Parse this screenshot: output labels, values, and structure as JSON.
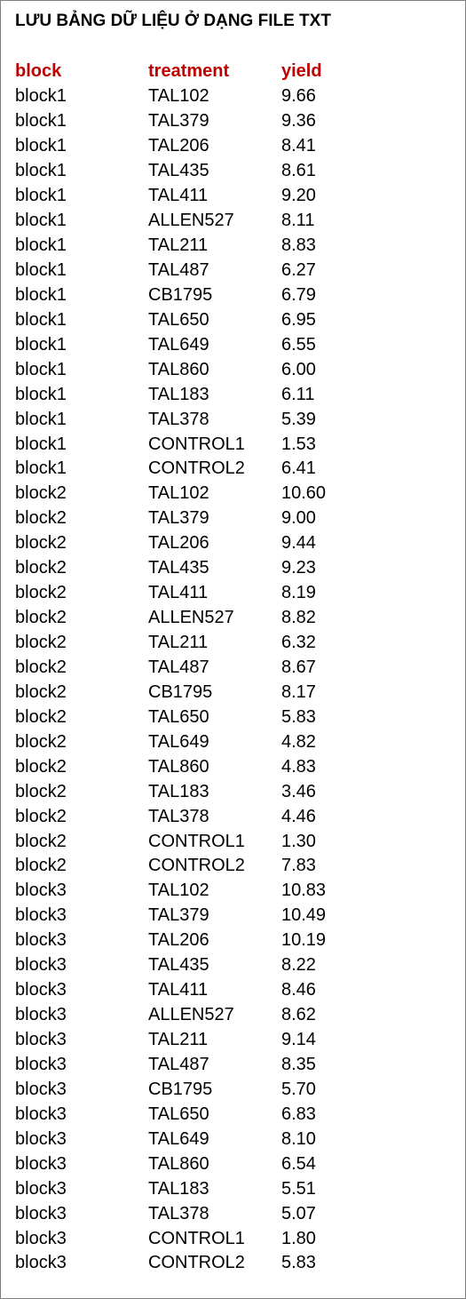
{
  "title": "LƯU BẢNG DỮ LIỆU Ở DẠNG FILE TXT",
  "accent_color": "#c00000",
  "table": {
    "headers": [
      "block",
      "treatment",
      "yield"
    ],
    "rows": [
      [
        "block1",
        "TAL102",
        "9.66"
      ],
      [
        "block1",
        "TAL379",
        "9.36"
      ],
      [
        "block1",
        "TAL206",
        "8.41"
      ],
      [
        "block1",
        "TAL435",
        "8.61"
      ],
      [
        "block1",
        "TAL411",
        "9.20"
      ],
      [
        "block1",
        "ALLEN527",
        "8.11"
      ],
      [
        "block1",
        "TAL211",
        "8.83"
      ],
      [
        "block1",
        "TAL487",
        "6.27"
      ],
      [
        "block1",
        "CB1795",
        "6.79"
      ],
      [
        "block1",
        "TAL650",
        "6.95"
      ],
      [
        "block1",
        "TAL649",
        "6.55"
      ],
      [
        "block1",
        "TAL860",
        "6.00"
      ],
      [
        "block1",
        "TAL183",
        "6.11"
      ],
      [
        "block1",
        "TAL378",
        "5.39"
      ],
      [
        "block1",
        "CONTROL1",
        "1.53"
      ],
      [
        "block1",
        "CONTROL2",
        "6.41"
      ],
      [
        "block2",
        "TAL102",
        "10.60"
      ],
      [
        "block2",
        "TAL379",
        "9.00"
      ],
      [
        "block2",
        "TAL206",
        "9.44"
      ],
      [
        "block2",
        "TAL435",
        "9.23"
      ],
      [
        "block2",
        "TAL411",
        "8.19"
      ],
      [
        "block2",
        "ALLEN527",
        "8.82"
      ],
      [
        "block2",
        "TAL211",
        "6.32"
      ],
      [
        "block2",
        "TAL487",
        "8.67"
      ],
      [
        "block2",
        "CB1795",
        "8.17"
      ],
      [
        "block2",
        "TAL650",
        "5.83"
      ],
      [
        "block2",
        "TAL649",
        "4.82"
      ],
      [
        "block2",
        "TAL860",
        "4.83"
      ],
      [
        "block2",
        "TAL183",
        "3.46"
      ],
      [
        "block2",
        "TAL378",
        "4.46"
      ],
      [
        "block2",
        "CONTROL1",
        "1.30"
      ],
      [
        "block2",
        "CONTROL2",
        "7.83"
      ],
      [
        "block3",
        "TAL102",
        "10.83"
      ],
      [
        "block3",
        "TAL379",
        "10.49"
      ],
      [
        "block3",
        "TAL206",
        "10.19"
      ],
      [
        "block3",
        "TAL435",
        "8.22"
      ],
      [
        "block3",
        "TAL411",
        "8.46"
      ],
      [
        "block3",
        "ALLEN527",
        "8.62"
      ],
      [
        "block3",
        "TAL211",
        "9.14"
      ],
      [
        "block3",
        "TAL487",
        "8.35"
      ],
      [
        "block3",
        "CB1795",
        "5.70"
      ],
      [
        "block3",
        "TAL650",
        "6.83"
      ],
      [
        "block3",
        "TAL649",
        "8.10"
      ],
      [
        "block3",
        "TAL860",
        "6.54"
      ],
      [
        "block3",
        "TAL183",
        "5.51"
      ],
      [
        "block3",
        "TAL378",
        "5.07"
      ],
      [
        "block3",
        "CONTROL1",
        "1.80"
      ],
      [
        "block3",
        "CONTROL2",
        "5.83"
      ]
    ]
  }
}
